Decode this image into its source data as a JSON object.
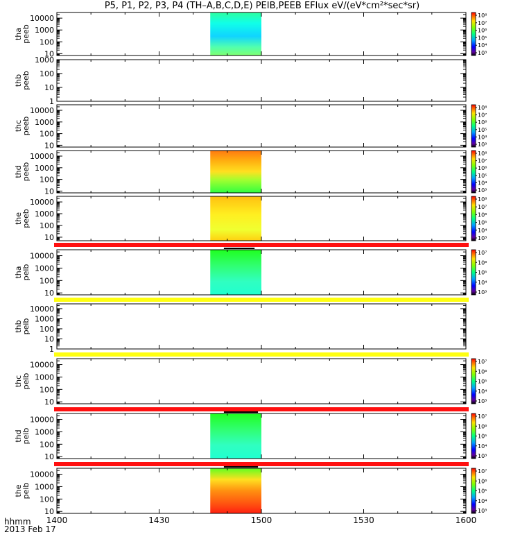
{
  "title": "P5, P1, P2, P3, P4 (TH–A,B,C,D,E) PEIB,PEEB EFlux eV/(eV*cm²*sec*sr)",
  "colors": {
    "status_red": "#ff1010",
    "status_yellow": "#ffff10",
    "mode_bar": "#000000"
  },
  "x_axis": {
    "tick_labels": [
      "1400",
      "1430",
      "1500",
      "1530",
      "1600"
    ],
    "corner_label_line1": "hhmm",
    "corner_label_line2": "2013 Feb 17"
  },
  "chart_data": [
    {
      "type": "heatmap",
      "probe": "tha",
      "product": "peeb",
      "ylabel": [
        "tha",
        "peeb"
      ],
      "scale": "log",
      "y_ticks": [
        "10000",
        "1000",
        "100",
        "10"
      ],
      "ylim_eV": [
        7,
        30000
      ],
      "data_span_hhmm": [
        "1445",
        "1500"
      ],
      "pattern": "electron",
      "colorbar": {
        "labels": [
          "10⁸",
          "10⁷",
          "10⁶",
          "10⁵",
          "10⁴",
          "10³"
        ],
        "range_log": [
          3,
          8
        ]
      }
    },
    {
      "type": "heatmap",
      "probe": "thb",
      "product": "peeb",
      "ylabel": [
        "thb",
        "peeb"
      ],
      "scale": "log",
      "y_ticks": [
        "1000",
        "100",
        "10",
        "1"
      ],
      "ylim_eV": [
        1,
        1000
      ],
      "data_span_hhmm": null,
      "pattern": "none",
      "colorbar": null
    },
    {
      "type": "heatmap",
      "probe": "thc",
      "product": "peeb",
      "ylabel": [
        "thc",
        "peeb"
      ],
      "scale": "log",
      "y_ticks": [
        "10000",
        "1000",
        "100",
        "10"
      ],
      "ylim_eV": [
        7,
        30000
      ],
      "data_span_hhmm": null,
      "pattern": "none",
      "colorbar": {
        "labels": [
          "10⁸",
          "10⁷",
          "10⁶",
          "10⁵",
          "10⁴",
          "10³"
        ],
        "range_log": [
          3,
          8
        ]
      }
    },
    {
      "type": "heatmap",
      "probe": "thd",
      "product": "peeb",
      "ylabel": [
        "thd",
        "peeb"
      ],
      "scale": "log",
      "y_ticks": [
        "10000",
        "1000",
        "100",
        "10"
      ],
      "ylim_eV": [
        7,
        30000
      ],
      "data_span_hhmm": [
        "1445",
        "1500"
      ],
      "pattern": "hot",
      "colorbar": {
        "labels": [
          "10⁸",
          "10⁷",
          "10⁶",
          "10⁵",
          "10⁴",
          "10³"
        ],
        "range_log": [
          3,
          8
        ]
      }
    },
    {
      "type": "heatmap",
      "probe": "the",
      "product": "peeb",
      "ylabel": [
        "the",
        "peeb"
      ],
      "scale": "log",
      "y_ticks": [
        "10000",
        "1000",
        "100",
        "10"
      ],
      "ylim_eV": [
        5,
        30000
      ],
      "data_span_hhmm": [
        "1445",
        "1500"
      ],
      "pattern": "warm",
      "colorbar": {
        "labels": [
          "10⁸",
          "10⁷",
          "10⁶",
          "10⁵",
          "10⁴",
          "10³"
        ],
        "range_log": [
          3,
          8
        ]
      }
    },
    {
      "type": "heatmap",
      "probe": "tha",
      "product": "peib",
      "ylabel": [
        "tha",
        "peib"
      ],
      "scale": "log",
      "y_ticks": [
        "10000",
        "1000",
        "100",
        "10"
      ],
      "ylim_eV": [
        7,
        30000
      ],
      "data_span_hhmm": [
        "1445",
        "1500"
      ],
      "pattern": "ion_green",
      "status_bar": "red",
      "mode_bars_hhmm": [
        [
          "1449",
          "1458"
        ]
      ],
      "colorbar": {
        "labels": [
          "10⁷",
          "10⁶",
          "10⁵",
          "10⁴",
          "10³"
        ],
        "range_log": [
          3,
          7
        ]
      }
    },
    {
      "type": "heatmap",
      "probe": "thb",
      "product": "peib",
      "ylabel": [
        "thb",
        "peib"
      ],
      "scale": "log",
      "y_ticks": [
        "10000",
        "1000",
        "100",
        "10",
        "1"
      ],
      "ylim_eV": [
        1,
        30000
      ],
      "data_span_hhmm": null,
      "pattern": "none",
      "status_bar": "yellow",
      "colorbar": null
    },
    {
      "type": "heatmap",
      "probe": "thc",
      "product": "peib",
      "ylabel": [
        "thc",
        "peib"
      ],
      "scale": "log",
      "y_ticks": [
        "10000",
        "1000",
        "100",
        "10"
      ],
      "ylim_eV": [
        7,
        30000
      ],
      "data_span_hhmm": null,
      "pattern": "none",
      "status_bar": "yellow",
      "colorbar": {
        "labels": [
          "10⁷",
          "10⁶",
          "10⁵",
          "10⁴",
          "10³"
        ],
        "range_log": [
          3,
          7
        ]
      }
    },
    {
      "type": "heatmap",
      "probe": "thd",
      "product": "peib",
      "ylabel": [
        "thd",
        "peib"
      ],
      "scale": "log",
      "y_ticks": [
        "10000",
        "1000",
        "100",
        "10"
      ],
      "ylim_eV": [
        7,
        30000
      ],
      "data_span_hhmm": [
        "1445",
        "1500"
      ],
      "pattern": "ion_green",
      "status_bar": "red",
      "mode_bars_hhmm": [
        [
          "1449",
          "1459"
        ]
      ],
      "colorbar": {
        "labels": [
          "10⁷",
          "10⁶",
          "10⁵",
          "10⁴",
          "10³"
        ],
        "range_log": [
          3,
          7
        ]
      }
    },
    {
      "type": "heatmap",
      "probe": "the",
      "product": "peib",
      "ylabel": [
        "the",
        "peib"
      ],
      "scale": "log",
      "y_ticks": [
        "10000",
        "1000",
        "100",
        "10"
      ],
      "ylim_eV": [
        7,
        30000
      ],
      "data_span_hhmm": [
        "1445",
        "1500"
      ],
      "pattern": "ion_hot",
      "status_bar": "red",
      "mode_bars_hhmm": [
        [
          "1449",
          "1459"
        ]
      ],
      "colorbar": {
        "labels": [
          "10⁷",
          "10⁶",
          "10⁵",
          "10⁴",
          "10³"
        ],
        "range_log": [
          3,
          7
        ]
      }
    }
  ]
}
